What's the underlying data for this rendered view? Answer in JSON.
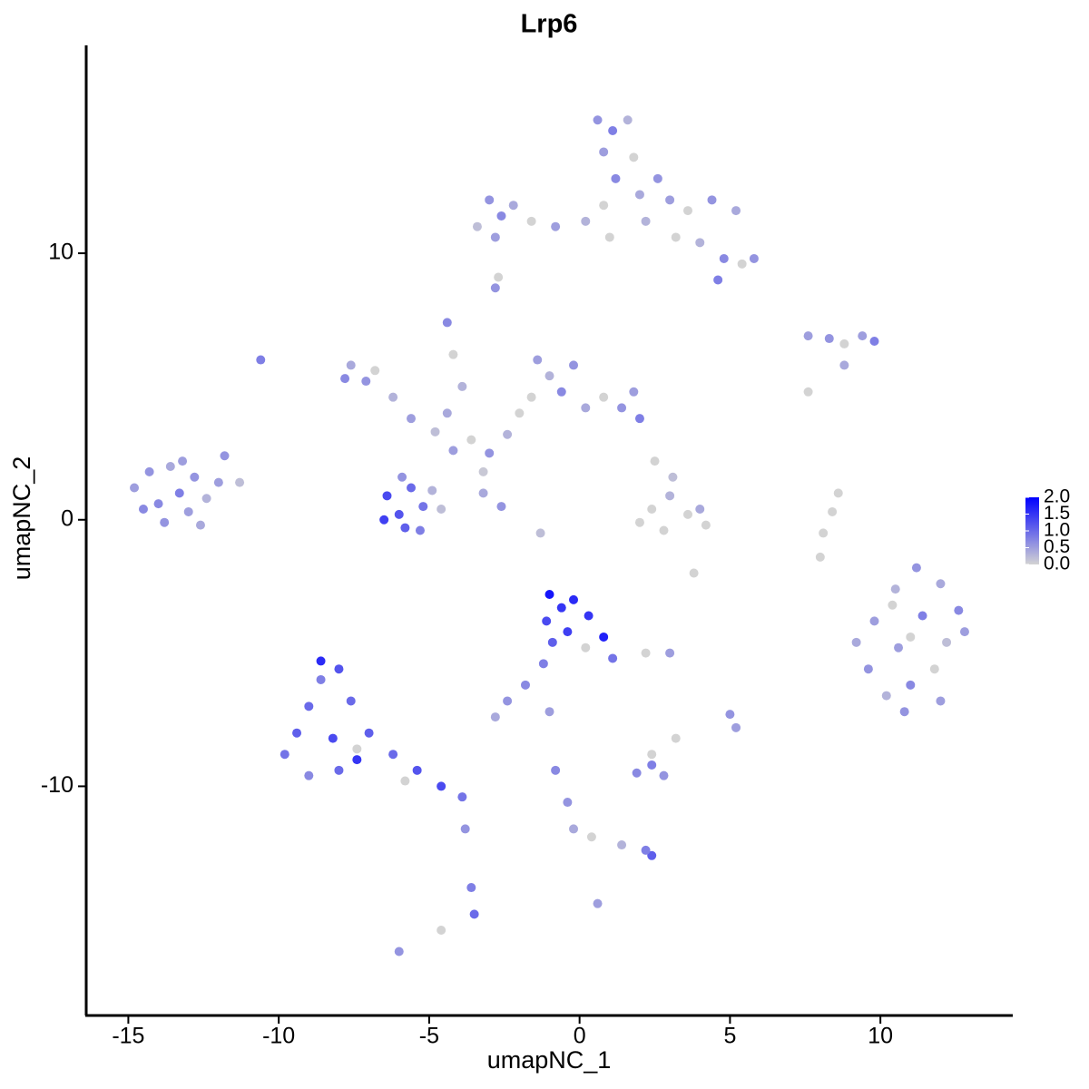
{
  "chart_data": {
    "type": "scatter",
    "title": "Lrp6",
    "x_label": "umapNC_1",
    "y_label": "umapNC_2",
    "xlim": [
      -16.4,
      14.4
    ],
    "ylim": [
      -18.6,
      17.8
    ],
    "xticks": [
      -15,
      -10,
      -5,
      0,
      5,
      10
    ],
    "yticks": [
      -10,
      0,
      10
    ],
    "color_low": "#d3d3d3",
    "color_high": "#0000ff",
    "clim": [
      0,
      2
    ],
    "color_ticks": [
      {
        "value": 0,
        "label": "0.0"
      },
      {
        "value": 0.5,
        "label": "0.5"
      },
      {
        "value": 1,
        "label": "1.0"
      },
      {
        "value": 1.5,
        "label": "1.5"
      },
      {
        "value": 2,
        "label": "2.0"
      }
    ],
    "x": [
      -14.8,
      -14.3,
      -14.0,
      -13.6,
      -13.3,
      -13.0,
      -12.8,
      -12.4,
      -12.0,
      -11.8,
      -11.3,
      -13.8,
      -12.6,
      -14.5,
      -13.2,
      -10.6,
      -6.4,
      -6.0,
      -5.6,
      -5.2,
      -5.8,
      -4.9,
      -6.5,
      -5.3,
      -4.6,
      -5.9,
      -7.6,
      -7.1,
      -6.8,
      -6.2,
      -5.6,
      -7.8,
      -4.8,
      -4.2,
      -3.6,
      -3.0,
      -2.4,
      -2.0,
      -4.4,
      -3.2,
      -1.4,
      -1.0,
      -0.6,
      -1.6,
      0.2,
      0.8,
      1.4,
      2.0,
      1.8,
      -0.2,
      -4.4,
      -4.2,
      -3.9,
      -3.2,
      -2.6,
      -1.3,
      0.6,
      1.1,
      1.6,
      0.8,
      1.8,
      1.2,
      2.0,
      0.8,
      2.6,
      2.2,
      -3.0,
      -2.6,
      -2.2,
      -1.6,
      -0.8,
      0.2,
      -3.4,
      -2.8,
      1.0,
      3.0,
      3.6,
      4.4,
      5.2,
      4.0,
      4.8,
      5.4,
      5.8,
      4.6,
      3.2,
      -2.8,
      -2.7,
      7.6,
      8.3,
      8.8,
      9.4,
      9.8,
      8.8,
      7.6,
      2.4,
      3.0,
      3.6,
      2.8,
      4.2,
      3.1,
      2.0,
      4.0,
      3.8,
      2.5,
      8.6,
      8.4,
      8.1,
      8.0,
      9.8,
      10.5,
      11.2,
      12.0,
      12.6,
      12.2,
      11.4,
      10.6,
      9.6,
      10.2,
      11.0,
      11.8,
      12.0,
      10.8,
      9.2,
      11.0,
      12.8,
      10.4,
      -9.8,
      -9.4,
      -9.0,
      -8.6,
      -8.0,
      -7.6,
      -8.2,
      -9.0,
      -8.0,
      -7.4,
      -7.0,
      -8.6,
      -7.4,
      -6.2,
      -5.4,
      -4.6,
      -3.9,
      -5.8,
      -3.8,
      -3.6,
      -3.5,
      -4.6,
      -6.0,
      -1.0,
      -0.6,
      -0.2,
      -1.1,
      -0.4,
      0.3,
      0.8,
      1.1,
      -0.9,
      0.2,
      -1.2,
      -1.8,
      -2.4,
      -2.8,
      -1.0,
      -0.8,
      -0.4,
      -0.2,
      0.4,
      1.4,
      2.4,
      2.2,
      0.6,
      1.9,
      2.4,
      2.8,
      2.4,
      3.2,
      3.0,
      5.0,
      5.2,
      2.2
    ],
    "y": [
      1.2,
      1.8,
      0.6,
      2.0,
      1.0,
      0.3,
      1.6,
      0.8,
      1.4,
      2.4,
      1.4,
      -0.1,
      -0.2,
      0.4,
      2.2,
      6.0,
      0.9,
      0.2,
      1.2,
      0.5,
      -0.3,
      1.1,
      0.0,
      -0.4,
      0.4,
      1.6,
      5.8,
      5.2,
      5.6,
      4.6,
      3.8,
      5.3,
      3.3,
      2.6,
      3.0,
      2.5,
      3.2,
      4.0,
      4.0,
      1.8,
      6.0,
      5.4,
      4.8,
      4.6,
      4.2,
      4.6,
      4.2,
      3.8,
      4.8,
      5.8,
      7.4,
      6.2,
      5.0,
      1.0,
      0.5,
      -0.5,
      15.0,
      14.6,
      15.0,
      13.8,
      13.6,
      12.8,
      12.2,
      11.8,
      12.8,
      11.2,
      12.0,
      11.4,
      11.8,
      11.2,
      11.0,
      11.2,
      11.0,
      10.6,
      10.6,
      12.0,
      11.6,
      12.0,
      11.6,
      10.4,
      9.8,
      9.6,
      9.8,
      9.0,
      10.6,
      8.7,
      9.1,
      6.9,
      6.8,
      6.6,
      6.9,
      6.7,
      5.8,
      4.8,
      0.4,
      0.9,
      0.2,
      -0.4,
      -0.2,
      1.6,
      -0.1,
      0.4,
      -2.0,
      2.2,
      1.0,
      0.3,
      -0.5,
      -1.4,
      -3.8,
      -2.6,
      -1.8,
      -2.4,
      -3.4,
      -4.6,
      -3.6,
      -4.8,
      -5.6,
      -6.6,
      -6.2,
      -5.6,
      -6.8,
      -7.2,
      -4.6,
      -4.4,
      -4.2,
      -3.2,
      -8.8,
      -8.0,
      -7.0,
      -6.0,
      -5.6,
      -6.8,
      -8.2,
      -9.6,
      -9.4,
      -8.6,
      -8.0,
      -5.3,
      -9.0,
      -8.8,
      -9.4,
      -10.0,
      -10.4,
      -9.8,
      -11.6,
      -13.8,
      -14.8,
      -15.4,
      -16.2,
      -2.8,
      -3.3,
      -3.0,
      -3.8,
      -4.2,
      -3.6,
      -4.4,
      -5.2,
      -4.6,
      -4.8,
      -5.4,
      -6.2,
      -6.8,
      -7.4,
      -7.2,
      -9.4,
      -10.6,
      -11.6,
      -11.9,
      -12.2,
      -12.6,
      -12.4,
      -14.4,
      -9.5,
      -9.2,
      -9.6,
      -8.8,
      -8.2,
      -5.0,
      -7.3,
      -7.8,
      -5.0
    ],
    "values": [
      0.5,
      0.6,
      0.7,
      0.4,
      0.8,
      0.5,
      0.6,
      0.3,
      0.5,
      0.6,
      0.2,
      0.6,
      0.4,
      0.7,
      0.5,
      0.8,
      1.3,
      1.2,
      1.0,
      0.9,
      1.1,
      0.3,
      1.4,
      0.8,
      0.2,
      0.6,
      0.4,
      0.6,
      0.0,
      0.3,
      0.5,
      0.7,
      0.2,
      0.5,
      0.0,
      0.6,
      0.3,
      0.0,
      0.4,
      0.1,
      0.5,
      0.3,
      0.7,
      0.0,
      0.4,
      0.0,
      0.6,
      0.8,
      0.5,
      0.6,
      0.7,
      0.0,
      0.3,
      0.4,
      0.6,
      0.2,
      0.6,
      0.8,
      0.3,
      0.5,
      0.0,
      0.7,
      0.4,
      0.0,
      0.6,
      0.3,
      0.6,
      0.7,
      0.4,
      0.0,
      0.5,
      0.3,
      0.2,
      0.5,
      0.0,
      0.5,
      0.0,
      0.6,
      0.4,
      0.3,
      0.7,
      0.0,
      0.6,
      0.8,
      0.0,
      0.6,
      0.0,
      0.5,
      0.6,
      0.0,
      0.5,
      0.8,
      0.4,
      0.0,
      0.0,
      0.3,
      0.0,
      0.0,
      0.0,
      0.2,
      0.0,
      0.4,
      0.0,
      0.0,
      0.0,
      0.0,
      0.0,
      0.0,
      0.5,
      0.3,
      0.6,
      0.4,
      0.7,
      0.2,
      0.8,
      0.5,
      0.6,
      0.3,
      0.7,
      0.0,
      0.5,
      0.6,
      0.4,
      0.0,
      0.5,
      0.0,
      0.9,
      1.1,
      1.0,
      0.8,
      1.2,
      1.0,
      1.3,
      0.7,
      1.0,
      0.0,
      1.1,
      1.6,
      1.5,
      1.0,
      1.2,
      1.3,
      0.9,
      0.0,
      0.6,
      0.8,
      1.0,
      0.0,
      0.6,
      1.8,
      1.5,
      1.6,
      1.3,
      1.4,
      1.5,
      1.7,
      0.9,
      1.1,
      0.0,
      0.8,
      0.7,
      0.6,
      0.4,
      0.5,
      0.7,
      0.6,
      0.4,
      0.0,
      0.3,
      1.1,
      0.8,
      0.5,
      0.7,
      0.8,
      0.6,
      0.0,
      0.0,
      0.5,
      0.6,
      0.5,
      0.0
    ]
  }
}
